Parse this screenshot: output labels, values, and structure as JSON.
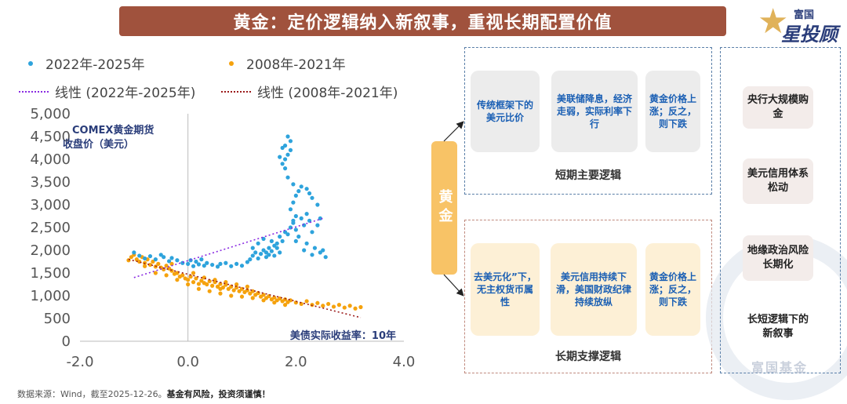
{
  "title": "黄金：定价逻辑纳入新叙事，重视长期配置价值",
  "logo": {
    "line1": "富国",
    "line2": "星投顾",
    "watermark": "富国基金"
  },
  "legend": {
    "series_a": "2022年-2025年",
    "series_b": "2008年-2021年",
    "trend_a": "线性 (2022年-2025年)",
    "trend_b": "线性 (2008年-2021年)"
  },
  "colors": {
    "series_a": "#2ea3dc",
    "series_b": "#f5a20d",
    "trend_a": "#8a2be2",
    "trend_b": "#9b1b1b",
    "accent": "#a0523d",
    "card_text": "#1a5fb4"
  },
  "source": "数据来源：Wind，截至2025-12-26。",
  "risk": "基金有风险，投资须谨慎！",
  "chart_data": {
    "type": "scatter",
    "title": "",
    "ylabel": "COMEX黄金期货收盘价（美元）",
    "xlabel": "美债实际收益率：10年",
    "xlim": [
      -2.0,
      4.0
    ],
    "ylim": [
      0,
      5000
    ],
    "xticks": [
      "-2.0",
      "0.0",
      "2.0",
      "4.0"
    ],
    "yticks": [
      "0",
      "500",
      "1,000",
      "1,500",
      "2,000",
      "2,500",
      "3,000",
      "3,500",
      "4,000",
      "4,500",
      "5,000"
    ],
    "series": [
      {
        "name": "2022年-2025年",
        "points": [
          [
            -1.0,
            1950
          ],
          [
            -0.9,
            1880
          ],
          [
            -0.8,
            1820
          ],
          [
            -0.7,
            1870
          ],
          [
            -0.6,
            1800
          ],
          [
            -0.5,
            1900
          ],
          [
            -0.45,
            1850
          ],
          [
            -0.35,
            1760
          ],
          [
            -0.3,
            1830
          ],
          [
            -0.2,
            1780
          ],
          [
            -0.1,
            1720
          ],
          [
            0.0,
            1700
          ],
          [
            0.05,
            1780
          ],
          [
            0.1,
            1650
          ],
          [
            0.15,
            1750
          ],
          [
            0.2,
            1690
          ],
          [
            0.25,
            1800
          ],
          [
            0.3,
            1660
          ],
          [
            0.35,
            1720
          ],
          [
            0.45,
            1680
          ],
          [
            0.55,
            1640
          ],
          [
            0.6,
            1700
          ],
          [
            0.7,
            1720
          ],
          [
            0.8,
            1650
          ],
          [
            0.9,
            1700
          ],
          [
            1.0,
            1660
          ],
          [
            1.1,
            1740
          ],
          [
            1.15,
            1800
          ],
          [
            1.2,
            1880
          ],
          [
            1.25,
            1950
          ],
          [
            1.3,
            1820
          ],
          [
            1.35,
            1920
          ],
          [
            1.4,
            2000
          ],
          [
            1.45,
            1850
          ],
          [
            1.5,
            1900
          ],
          [
            1.55,
            1980
          ],
          [
            1.6,
            1880
          ],
          [
            1.65,
            2050
          ],
          [
            1.7,
            1950
          ],
          [
            1.5,
            2050
          ],
          [
            1.6,
            2100
          ],
          [
            1.4,
            2250
          ],
          [
            1.45,
            1950
          ],
          [
            1.7,
            2300
          ],
          [
            1.75,
            2200
          ],
          [
            1.8,
            2400
          ],
          [
            1.85,
            2350
          ],
          [
            1.9,
            2500
          ],
          [
            1.95,
            2600
          ],
          [
            2.0,
            2450
          ],
          [
            2.05,
            2300
          ],
          [
            2.1,
            2700
          ],
          [
            2.15,
            2550
          ],
          [
            2.2,
            2800
          ],
          [
            2.25,
            2650
          ],
          [
            2.3,
            2400
          ],
          [
            1.9,
            2900
          ],
          [
            1.95,
            3050
          ],
          [
            2.0,
            3200
          ],
          [
            2.05,
            3300
          ],
          [
            2.1,
            3400
          ],
          [
            2.2,
            3350
          ],
          [
            2.25,
            3250
          ],
          [
            2.3,
            3150
          ],
          [
            2.4,
            3000
          ],
          [
            1.95,
            3450
          ],
          [
            1.85,
            3600
          ],
          [
            1.8,
            3800
          ],
          [
            1.75,
            3900
          ],
          [
            1.8,
            4000
          ],
          [
            1.85,
            4100
          ],
          [
            1.9,
            4200
          ],
          [
            1.8,
            4300
          ],
          [
            1.9,
            4400
          ],
          [
            1.85,
            4500
          ],
          [
            1.75,
            4250
          ],
          [
            1.7,
            4050
          ],
          [
            2.0,
            2200
          ],
          [
            2.15,
            2000
          ],
          [
            2.3,
            1900
          ],
          [
            2.45,
            1950
          ],
          [
            2.5,
            2000
          ],
          [
            2.55,
            1850
          ],
          [
            2.2,
            2150
          ],
          [
            2.35,
            2050
          ],
          [
            1.55,
            2200
          ],
          [
            1.65,
            2150
          ],
          [
            1.2,
            2050
          ],
          [
            1.3,
            2150
          ],
          [
            2.4,
            2550
          ],
          [
            2.45,
            2700
          ],
          [
            2.0,
            2750
          ],
          [
            1.95,
            2650
          ]
        ]
      },
      {
        "name": "2008年-2021年",
        "points": [
          [
            -1.1,
            1780
          ],
          [
            -1.05,
            1850
          ],
          [
            -1.0,
            1900
          ],
          [
            -0.95,
            1800
          ],
          [
            -0.9,
            1750
          ],
          [
            -0.85,
            1850
          ],
          [
            -0.8,
            1720
          ],
          [
            -0.75,
            1800
          ],
          [
            -0.7,
            1680
          ],
          [
            -0.65,
            1750
          ],
          [
            -0.6,
            1640
          ],
          [
            -0.55,
            1700
          ],
          [
            -0.5,
            1620
          ],
          [
            -0.45,
            1580
          ],
          [
            -0.4,
            1660
          ],
          [
            -0.35,
            1600
          ],
          [
            -0.3,
            1550
          ],
          [
            -0.25,
            1480
          ],
          [
            -0.2,
            1500
          ],
          [
            -0.15,
            1420
          ],
          [
            -0.1,
            1450
          ],
          [
            -0.05,
            1380
          ],
          [
            0.0,
            1350
          ],
          [
            0.05,
            1420
          ],
          [
            0.1,
            1300
          ],
          [
            0.15,
            1380
          ],
          [
            0.2,
            1260
          ],
          [
            0.25,
            1330
          ],
          [
            0.3,
            1280
          ],
          [
            0.35,
            1250
          ],
          [
            0.4,
            1320
          ],
          [
            0.45,
            1220
          ],
          [
            0.5,
            1300
          ],
          [
            0.55,
            1200
          ],
          [
            0.6,
            1260
          ],
          [
            0.65,
            1180
          ],
          [
            0.7,
            1240
          ],
          [
            0.75,
            1150
          ],
          [
            0.8,
            1200
          ],
          [
            0.85,
            1120
          ],
          [
            0.9,
            1180
          ],
          [
            0.95,
            1100
          ],
          [
            1.0,
            1150
          ],
          [
            1.05,
            1080
          ],
          [
            1.1,
            1120
          ],
          [
            1.15,
            1050
          ],
          [
            1.2,
            1100
          ],
          [
            1.25,
            1020
          ],
          [
            1.3,
            1060
          ],
          [
            1.35,
            980
          ],
          [
            1.4,
            1020
          ],
          [
            1.45,
            950
          ],
          [
            1.5,
            990
          ],
          [
            1.55,
            920
          ],
          [
            1.6,
            960
          ],
          [
            1.65,
            900
          ],
          [
            1.7,
            940
          ],
          [
            1.75,
            880
          ],
          [
            1.8,
            920
          ],
          [
            1.85,
            860
          ],
          [
            1.9,
            900
          ],
          [
            2.0,
            850
          ],
          [
            2.1,
            820
          ],
          [
            2.2,
            880
          ],
          [
            2.3,
            800
          ],
          [
            2.4,
            840
          ],
          [
            2.5,
            780
          ],
          [
            2.6,
            820
          ],
          [
            2.7,
            760
          ],
          [
            2.8,
            800
          ],
          [
            2.9,
            740
          ],
          [
            3.0,
            780
          ],
          [
            3.1,
            720
          ],
          [
            3.2,
            750
          ],
          [
            -0.6,
            1500
          ],
          [
            -0.4,
            1450
          ],
          [
            -0.2,
            1350
          ],
          [
            0.0,
            1250
          ],
          [
            0.2,
            1150
          ],
          [
            0.4,
            1100
          ],
          [
            0.6,
            1050
          ],
          [
            0.8,
            1000
          ],
          [
            1.0,
            980
          ],
          [
            1.2,
            950
          ],
          [
            0.3,
            1400
          ],
          [
            0.5,
            1350
          ],
          [
            0.7,
            1300
          ],
          [
            0.9,
            1250
          ],
          [
            1.1,
            1200
          ],
          [
            -0.8,
            1650
          ],
          [
            -0.3,
            1700
          ],
          [
            0.1,
            1500
          ],
          [
            0.6,
            1150
          ],
          [
            1.4,
            900
          ],
          [
            1.6,
            850
          ],
          [
            1.8,
            800
          ]
        ]
      }
    ],
    "trendlines": [
      {
        "name": "线性 (2022年-2025年)",
        "x": [
          -1.0,
          2.5
        ],
        "y": [
          1400,
          2700
        ]
      },
      {
        "name": "线性 (2008年-2021年)",
        "x": [
          -1.1,
          3.2
        ],
        "y": [
          1800,
          520
        ]
      }
    ]
  },
  "diagram": {
    "gold_label": "黄金",
    "short_term": {
      "label": "短期主要逻辑",
      "cards": [
        "传统框架下的美元比价",
        "美联储降息，经济走弱，实际利率下行",
        "黄金价格上涨；反之，则下跌"
      ]
    },
    "long_term": {
      "label": "长期支撑逻辑",
      "cards": [
        "去美元化”下，无主权货币属性",
        "美元信用持续下滑，美国财政纪律持续放纵",
        "黄金价格上涨；反之，则下跌"
      ]
    },
    "side": {
      "items": [
        "央行大规模购金",
        "美元信用体系松动",
        "地缘政治风险长期化",
        "长短逻辑下的新叙事"
      ]
    }
  }
}
